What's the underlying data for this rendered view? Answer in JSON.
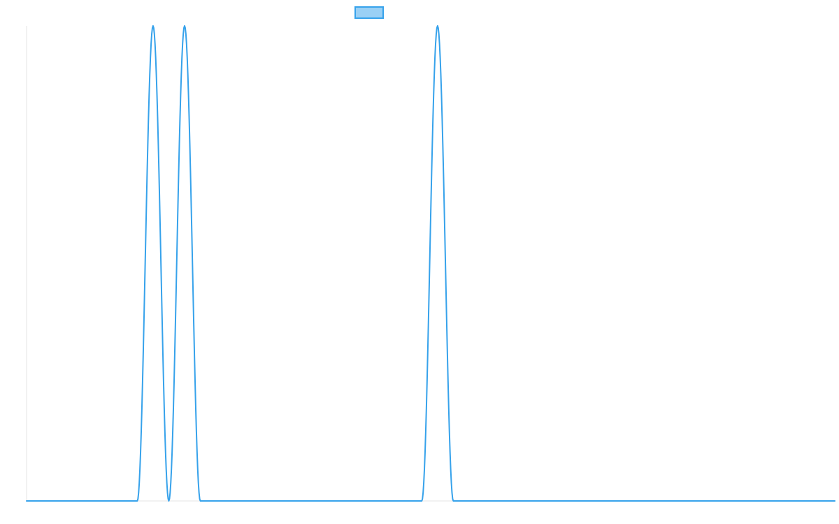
{
  "chart_data": {
    "type": "line",
    "title": "",
    "xlabel": "",
    "ylabel": "",
    "xlim": [
      0,
      100
    ],
    "ylim": [
      0,
      1
    ],
    "grid": false,
    "legend": "top-center",
    "series": [
      {
        "color": "#36a2eb",
        "fill": "#9ad0f5",
        "x": [
          0,
          13.7,
          15.65,
          17.6,
          19.55,
          21.5,
          48.9,
          50.85,
          52.8,
          100
        ],
        "y": [
          0,
          0,
          1,
          0,
          1,
          0,
          0,
          1,
          0,
          0
        ]
      }
    ]
  }
}
